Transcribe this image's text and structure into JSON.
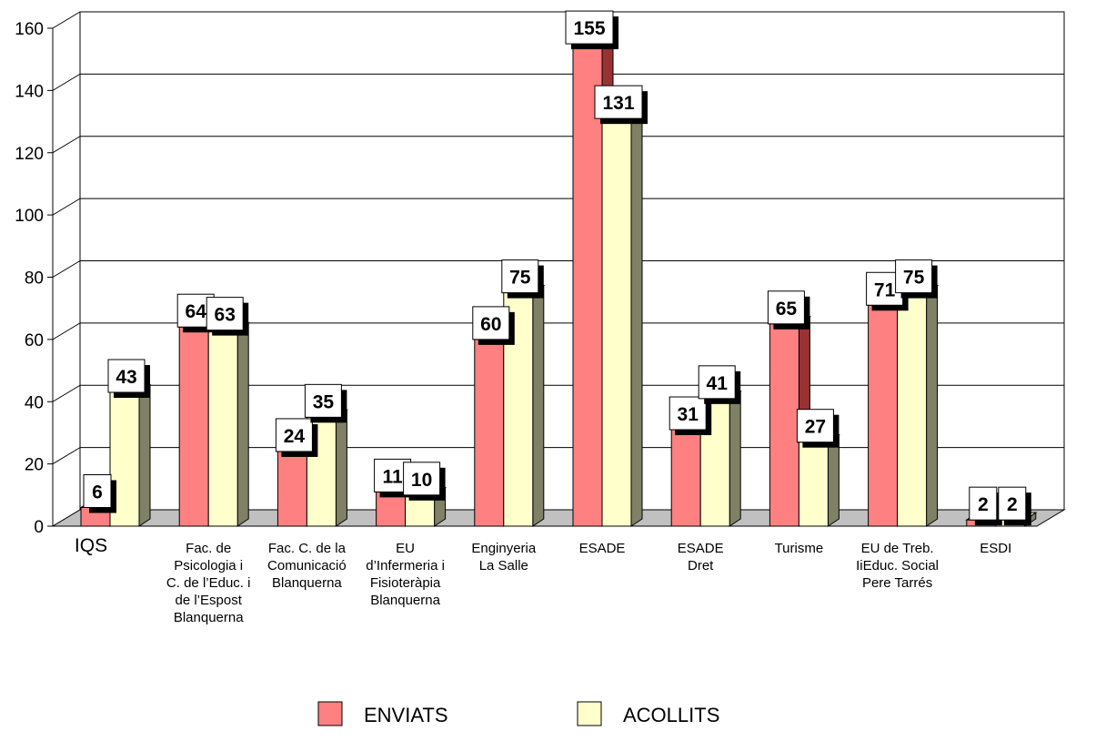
{
  "chart_data": {
    "type": "bar",
    "title": "",
    "xlabel": "",
    "ylabel": "",
    "ylim": [
      0,
      160
    ],
    "yticks": [
      0,
      20,
      40,
      60,
      80,
      100,
      120,
      140,
      160
    ],
    "grid": true,
    "legend_position": "bottom",
    "categories": [
      "IQS",
      "Fac. de Psicologia i C. de l'Educ. i de l'Espost Blanquerna",
      "Fac. C. de la Comunicació Blanquerna",
      "EU d'Infermeria i Fisioteràpia Blanquerna",
      "Enginyeria La Salle",
      "ESADE",
      "ESADE Dret",
      "Turisme",
      "EU de Treb. IiEduc. Social Pere Tarrés",
      "ESDI"
    ],
    "category_label_lines": [
      [
        "IQS"
      ],
      [
        "Fac. de",
        "Psicologia i",
        "C. de l’Educ. i",
        "de l’Espost",
        "Blanquerna"
      ],
      [
        "Fac. C. de la",
        "Comunicació",
        "Blanquerna"
      ],
      [
        "EU",
        "d’Infermeria i",
        "Fisioteràpia",
        "Blanquerna"
      ],
      [
        "Enginyeria",
        "La Salle"
      ],
      [
        "ESADE"
      ],
      [
        "ESADE",
        "Dret"
      ],
      [
        "Turisme"
      ],
      [
        "EU de Treb.",
        "IiEduc. Social",
        "Pere Tarrés"
      ],
      [
        "ESDI"
      ]
    ],
    "series": [
      {
        "name": "ENVIATS",
        "color": "#ff8080",
        "side_color": "#993333",
        "values": [
          6,
          64,
          24,
          11,
          60,
          155,
          31,
          65,
          71,
          2
        ]
      },
      {
        "name": "ACOLLITS",
        "color": "#ffffcc",
        "side_color": "#808066",
        "values": [
          43,
          63,
          35,
          10,
          75,
          131,
          41,
          27,
          75,
          2
        ]
      }
    ],
    "colors": {
      "floor": "#c0c0c0",
      "grid": "#000000",
      "label_box": "#ffffff",
      "label_shadow": "#000000"
    }
  }
}
